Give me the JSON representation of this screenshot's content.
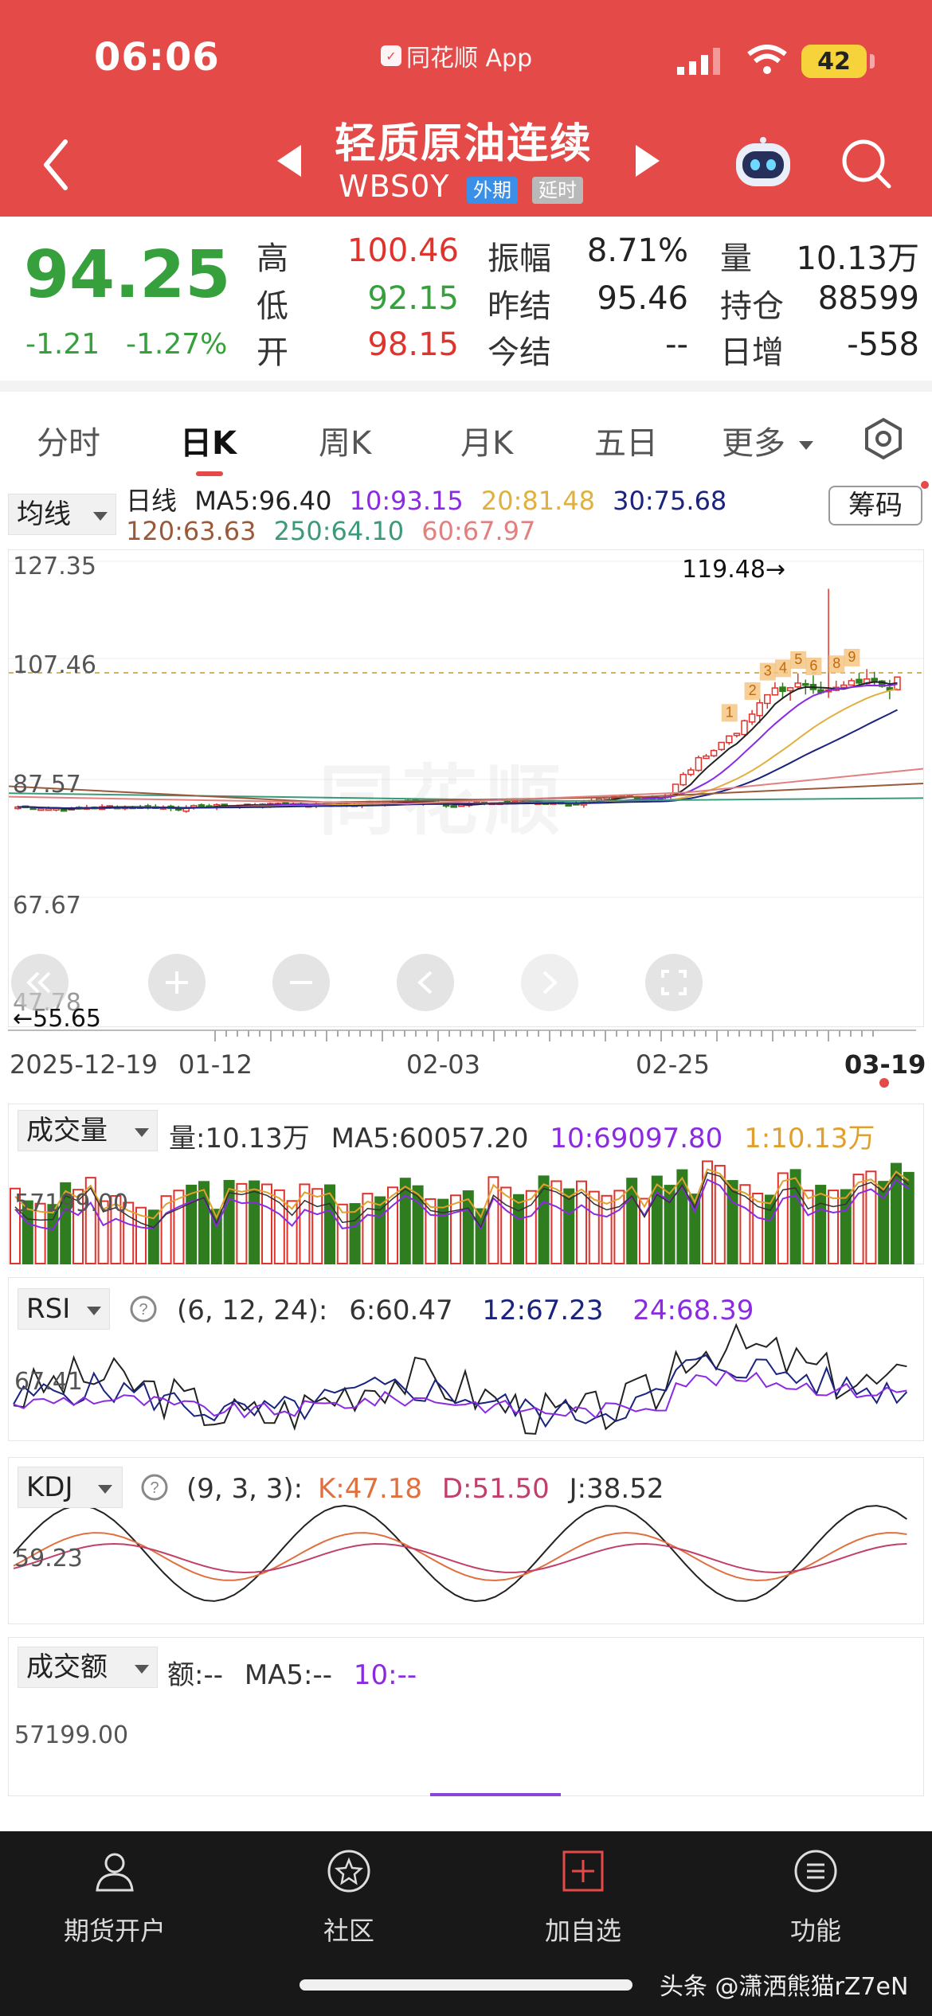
{
  "status": {
    "time": "06:06",
    "app_label": "同花顺 App",
    "battery": "42"
  },
  "header": {
    "title": "轻质原油连续",
    "code": "WBS0Y",
    "tag_market": "外期",
    "tag_delay": "延时"
  },
  "quote": {
    "price": "94.25",
    "change": "-1.21",
    "change_pct": "-1.27%",
    "high_label": "高",
    "high": "100.46",
    "low_label": "低",
    "low": "92.15",
    "open_label": "开",
    "open": "98.15",
    "amp_label": "振幅",
    "amp": "8.71%",
    "prev_label": "昨结",
    "prev": "95.46",
    "today_label": "今结",
    "today": "--",
    "vol_label": "量",
    "vol": "10.13万",
    "oi_label": "持仓",
    "oi": "88599",
    "inc_label": "日增",
    "inc": "-558"
  },
  "tabs": [
    "分时",
    "日K",
    "周K",
    "月K",
    "五日",
    "更多"
  ],
  "ma_legend": {
    "selector": "均线",
    "period": "日线",
    "ma5": "MA5:96.40",
    "ma10": "10:93.15",
    "ma20": "20:81.48",
    "ma30": "30:75.68",
    "ma120": "120:63.63",
    "ma250": "250:64.10",
    "ma60": "60:67.97",
    "chip_button": "筹码"
  },
  "kline": {
    "y_labels": [
      "127.35",
      "107.46",
      "87.57",
      "67.67",
      "47.78"
    ],
    "max_marker": "119.48→",
    "min_marker": "←55.65",
    "x_labels": [
      "2025-12-19",
      "01-12",
      "02-03",
      "02-25",
      "03-19"
    ],
    "watermark": "同花顺",
    "sequence_labels": [
      "1",
      "2",
      "3",
      "4",
      "5",
      "6",
      "8",
      "9"
    ]
  },
  "volume": {
    "selector": "成交量",
    "vol": "量:10.13万",
    "ma5": "MA5:60057.20",
    "ma10": "10:69097.80",
    "ma1": "1:10.13万",
    "y_label": "57199.00"
  },
  "rsi": {
    "selector": "RSI",
    "params": "(6, 12, 24):",
    "r6": "6:60.47",
    "r12": "12:67.23",
    "r24": "24:68.39",
    "y_label": "67.41"
  },
  "kdj": {
    "selector": "KDJ",
    "params": "(9, 3, 3):",
    "k": "K:47.18",
    "d": "D:51.50",
    "j": "J:38.52",
    "y_label": "59.23"
  },
  "amount": {
    "selector": "成交额",
    "amt": "额:--",
    "ma5": "MA5:--",
    "ma10": "10:--",
    "y_label": "57199.00"
  },
  "nav": [
    "期货开户",
    "社区",
    "加自选",
    "功能"
  ],
  "footer": {
    "watermark": "头条 @潇洒熊猫rZ7eN"
  },
  "colors": {
    "header": "#e34a48",
    "up": "#e0332c",
    "down": "#2f7d1f",
    "ma5": "#222222",
    "ma10": "#8a2be2",
    "ma20": "#e0b040",
    "ma30": "#1a237e",
    "ma60": "#e28080",
    "ma120": "#9a5a3a",
    "ma250": "#3c9a7a"
  }
}
